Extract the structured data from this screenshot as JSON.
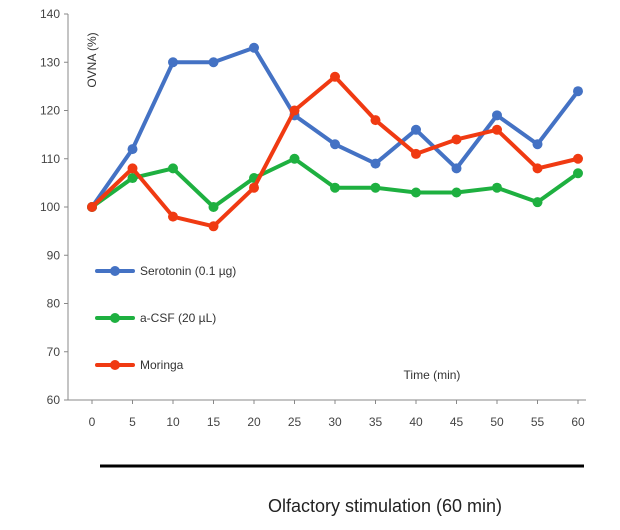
{
  "chart_data": {
    "type": "line",
    "title": "",
    "xlabel": "Time (min)",
    "ylabel": "OVNA (%)",
    "x": [
      0,
      5,
      10,
      15,
      20,
      25,
      30,
      35,
      40,
      45,
      50,
      55,
      60
    ],
    "xlim": [
      0,
      60
    ],
    "ylim": [
      60,
      140
    ],
    "y_ticks": [
      60,
      70,
      80,
      90,
      100,
      110,
      120,
      130,
      140
    ],
    "grid": false,
    "legend_placement": "bottom-left",
    "series": [
      {
        "name": "Serotonin (0.1 µg)",
        "color": "#4472c4",
        "values": [
          100,
          112,
          130,
          130,
          133,
          119,
          113,
          109,
          116,
          108,
          119,
          113,
          124
        ]
      },
      {
        "name": "a-CSF (20 µL)",
        "color": "#1eb040",
        "values": [
          100,
          106,
          108,
          100,
          106,
          110,
          104,
          104,
          103,
          103,
          104,
          101,
          107
        ]
      },
      {
        "name": "Moringa",
        "color": "#f03a12",
        "values": [
          100,
          108,
          98,
          96,
          104,
          120,
          127,
          118,
          111,
          114,
          116,
          108,
          110
        ]
      }
    ],
    "caption": "Olfactory stimulation (60 min)"
  }
}
